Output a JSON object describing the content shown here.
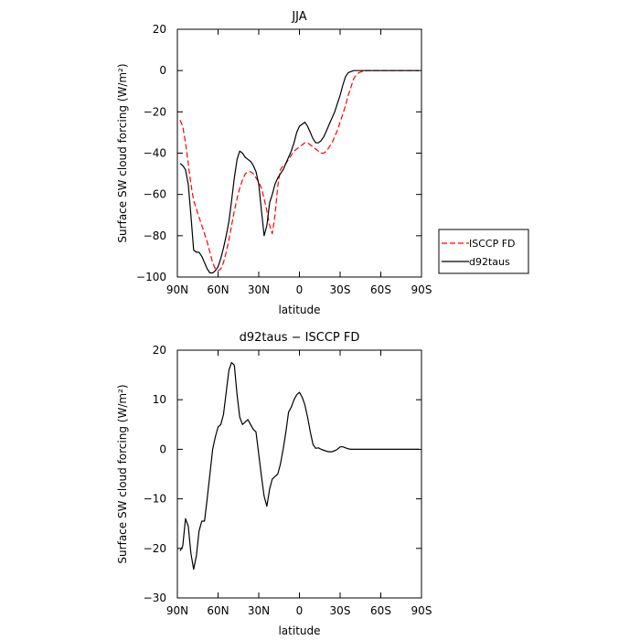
{
  "chart_data": [
    {
      "type": "line",
      "title": "JJA",
      "xlabel": "latitude",
      "ylabel": "Surface SW cloud forcing (W/m²)",
      "x_ticks": [
        "90N",
        "60N",
        "30N",
        "0",
        "30S",
        "60S",
        "90S"
      ],
      "x_tick_values": [
        90,
        60,
        30,
        0,
        -30,
        -60,
        -90
      ],
      "xlim": [
        90,
        -90
      ],
      "ylim": [
        -100,
        20
      ],
      "y_ticks": [
        -100,
        -80,
        -60,
        -40,
        -20,
        0,
        20
      ],
      "grid": false,
      "legend_position": "outside-right",
      "series": [
        {
          "name": "ISCCP FD",
          "color": "#ff0000",
          "dash": "dashed",
          "x": [
            88,
            86,
            84,
            82,
            80,
            78,
            76,
            74,
            72,
            70,
            68,
            66,
            64,
            62,
            60,
            58,
            56,
            54,
            52,
            50,
            48,
            46,
            44,
            42,
            40,
            38,
            36,
            34,
            32,
            30,
            28,
            26,
            24,
            22,
            20,
            18,
            16,
            14,
            12,
            10,
            8,
            6,
            4,
            2,
            0,
            -2,
            -4,
            -6,
            -8,
            -10,
            -12,
            -14,
            -16,
            -18,
            -20,
            -22,
            -24,
            -26,
            -28,
            -30,
            -32,
            -34,
            -36,
            -38,
            -40,
            -42,
            -44,
            -46,
            -48,
            -50,
            -52,
            -54,
            -56,
            -58,
            -60,
            -62,
            -64,
            -66,
            -68,
            -70,
            -72,
            -74,
            -76,
            -78,
            -80,
            -82,
            -84,
            -86,
            -88
          ],
          "y": [
            -24,
            -27,
            -35,
            -45,
            -55,
            -63,
            -67,
            -71,
            -75,
            -79,
            -83,
            -88,
            -93,
            -96,
            -97,
            -96,
            -93,
            -88,
            -82,
            -75,
            -68,
            -62,
            -57,
            -53,
            -50,
            -49,
            -49,
            -50,
            -52,
            -54,
            -57,
            -62,
            -68,
            -75,
            -79,
            -70,
            -56,
            -48,
            -46,
            -45,
            -43,
            -41,
            -39,
            -38,
            -37,
            -36,
            -35,
            -35,
            -36,
            -37,
            -38,
            -39,
            -40,
            -40,
            -39,
            -37,
            -35,
            -32,
            -29,
            -25,
            -21,
            -17,
            -12,
            -8,
            -4,
            -2,
            -1,
            -0.5,
            -0.2,
            0,
            0,
            0,
            0,
            0,
            0,
            0,
            0,
            0,
            0,
            0,
            0,
            0,
            0,
            0,
            0,
            0,
            0,
            0,
            0
          ]
        },
        {
          "name": "d92taus",
          "color": "#000000",
          "dash": "solid",
          "x": [
            88,
            86,
            84,
            82,
            80,
            78,
            76,
            74,
            72,
            70,
            68,
            66,
            64,
            62,
            60,
            58,
            56,
            54,
            52,
            50,
            48,
            46,
            44,
            42,
            40,
            38,
            36,
            34,
            32,
            30,
            28,
            26,
            24,
            22,
            20,
            18,
            16,
            14,
            12,
            10,
            8,
            6,
            4,
            2,
            0,
            -2,
            -4,
            -6,
            -8,
            -10,
            -12,
            -14,
            -16,
            -18,
            -20,
            -22,
            -24,
            -26,
            -28,
            -30,
            -32,
            -34,
            -36,
            -38,
            -40,
            -42,
            -44,
            -46,
            -48,
            -50,
            -52,
            -54,
            -56,
            -58,
            -60,
            -62,
            -64,
            -66,
            -68,
            -70,
            -72,
            -74,
            -76,
            -78,
            -80,
            -82,
            -84,
            -86,
            -88
          ],
          "y": [
            -45,
            -46,
            -48,
            -55,
            -70,
            -87,
            -88,
            -88,
            -90,
            -93,
            -96,
            -98,
            -98,
            -97,
            -95,
            -91,
            -86,
            -80,
            -73,
            -63,
            -52,
            -43,
            -39,
            -40,
            -42,
            -43,
            -44,
            -46,
            -49,
            -55,
            -68,
            -80,
            -75,
            -64,
            -60,
            -55,
            -52,
            -50,
            -48,
            -45,
            -42,
            -39,
            -35,
            -30,
            -27,
            -26,
            -25,
            -27,
            -30,
            -33,
            -35,
            -35,
            -34,
            -32,
            -29,
            -26,
            -23,
            -20,
            -16,
            -12,
            -7,
            -3,
            -1,
            -0.5,
            0,
            0,
            0,
            0,
            0,
            0,
            0,
            0,
            0,
            0,
            0,
            0,
            0,
            0,
            0,
            0,
            0,
            0,
            0,
            0,
            0,
            0,
            0,
            0,
            0
          ]
        }
      ]
    },
    {
      "type": "line",
      "title": "d92taus − ISCCP FD",
      "xlabel": "latitude",
      "ylabel": "Surface SW cloud forcing (W/m²)",
      "x_ticks": [
        "90N",
        "60N",
        "30N",
        "0",
        "30S",
        "60S",
        "90S"
      ],
      "x_tick_values": [
        90,
        60,
        30,
        0,
        -30,
        -60,
        -90
      ],
      "xlim": [
        90,
        -90
      ],
      "ylim": [
        -30,
        20
      ],
      "y_ticks": [
        -30,
        -20,
        -10,
        0,
        10,
        20
      ],
      "grid": false,
      "series": [
        {
          "color": "#000000",
          "dash": "solid",
          "x": [
            88,
            86,
            84,
            82,
            80,
            78,
            76,
            74,
            72,
            70,
            68,
            66,
            64,
            62,
            60,
            58,
            56,
            54,
            52,
            50,
            48,
            46,
            44,
            42,
            40,
            38,
            36,
            34,
            32,
            30,
            28,
            26,
            24,
            22,
            20,
            18,
            16,
            14,
            12,
            10,
            8,
            6,
            4,
            2,
            0,
            -2,
            -4,
            -6,
            -8,
            -10,
            -12,
            -14,
            -16,
            -18,
            -20,
            -22,
            -24,
            -26,
            -28,
            -30,
            -32,
            -34,
            -36,
            -38,
            -40,
            -42,
            -44,
            -46,
            -48,
            -50,
            -52,
            -54,
            -56,
            -58,
            -60,
            -62,
            -64,
            -66,
            -68,
            -70,
            -72,
            -74,
            -76,
            -78,
            -80,
            -82,
            -84,
            -86,
            -88
          ],
          "y": [
            -20.5,
            -19.5,
            -14,
            -15.5,
            -21,
            -24.2,
            -21.5,
            -16.5,
            -14.5,
            -14.5,
            -10,
            -5,
            0,
            2.5,
            4.5,
            5,
            7,
            11.5,
            16,
            17.5,
            17,
            11,
            6.5,
            5,
            5.5,
            6,
            5,
            4,
            3.5,
            -1,
            -5.5,
            -9.5,
            -11.5,
            -8,
            -6,
            -5.5,
            -5,
            -3,
            0,
            3.5,
            7.5,
            8.5,
            10,
            11,
            11.5,
            10.5,
            9,
            6.5,
            3.5,
            1,
            0.2,
            0.3,
            0,
            -0.2,
            -0.4,
            -0.5,
            -0.5,
            -0.3,
            0,
            0.5,
            0.5,
            0.3,
            0.1,
            0,
            0,
            0,
            0,
            0,
            0,
            0,
            0,
            0,
            0,
            0,
            0,
            0,
            0,
            0,
            0,
            0,
            0,
            0,
            0,
            0,
            0,
            0,
            0,
            0,
            0
          ]
        }
      ]
    }
  ]
}
